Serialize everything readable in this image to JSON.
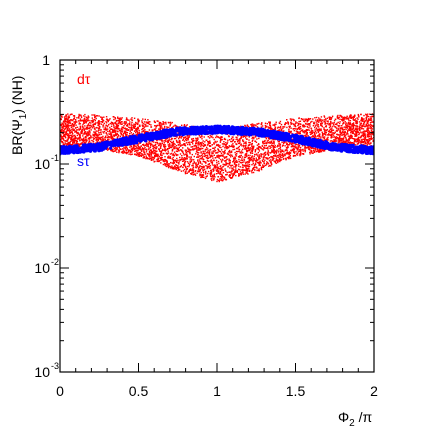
{
  "chart_data": {
    "type": "scatter",
    "title": "",
    "xlabel": "Φ₂/π",
    "xlabel_parts": {
      "base": "Φ",
      "sub": "2",
      "rest": " /π"
    },
    "ylabel": "BR(Ψ₁) (NH)",
    "ylabel_parts": {
      "pre": "BR(Ψ",
      "sub": "1",
      "post": ") (NH)"
    },
    "xlim": [
      0,
      2
    ],
    "ylim": [
      0.001,
      1
    ],
    "yscale": "log",
    "grid": false,
    "x_ticks": [
      {
        "value": 0,
        "label": "0"
      },
      {
        "value": 0.5,
        "label": "0.5"
      },
      {
        "value": 1,
        "label": "1"
      },
      {
        "value": 1.5,
        "label": "1.5"
      },
      {
        "value": 2,
        "label": "2"
      }
    ],
    "y_ticks": [
      {
        "value": 1,
        "base": "1",
        "exp": ""
      },
      {
        "value": 0.1,
        "base": "10",
        "exp": "-1"
      },
      {
        "value": 0.01,
        "base": "10",
        "exp": "-2"
      },
      {
        "value": 0.001,
        "base": "10",
        "exp": "-3"
      }
    ],
    "series": [
      {
        "name": "dτ",
        "color": "#ff0000",
        "style": "band",
        "x": [
          0,
          0.25,
          0.5,
          0.75,
          1.0,
          1.25,
          1.5,
          1.75,
          2.0
        ],
        "upper": [
          0.31,
          0.3,
          0.28,
          0.25,
          0.22,
          0.25,
          0.28,
          0.3,
          0.31
        ],
        "lower": [
          0.15,
          0.14,
          0.12,
          0.085,
          0.068,
          0.085,
          0.12,
          0.14,
          0.15
        ]
      },
      {
        "name": "sτ",
        "color": "#0000ff",
        "style": "curve",
        "x": [
          0,
          0.25,
          0.5,
          0.75,
          1.0,
          1.25,
          1.5,
          1.75,
          2.0
        ],
        "y": [
          0.135,
          0.145,
          0.175,
          0.205,
          0.215,
          0.205,
          0.175,
          0.145,
          0.135
        ]
      }
    ]
  }
}
